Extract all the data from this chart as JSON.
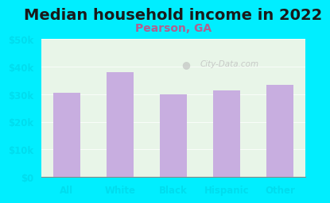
{
  "title": "Median household income in 2022",
  "subtitle": "Pearson, GA",
  "categories": [
    "All",
    "White",
    "Black",
    "Hispanic",
    "Other"
  ],
  "values": [
    30500,
    38000,
    30000,
    31500,
    33500
  ],
  "bar_color": "#c8aee0",
  "title_color": "#1a1a1a",
  "subtitle_color": "#b06090",
  "background_color": "#00eeff",
  "plot_bg_top": "#e8f5e8",
  "plot_bg_bottom": "#f5fff5",
  "tick_label_color": "#00ddee",
  "ylim": [
    0,
    50000
  ],
  "yticks": [
    0,
    10000,
    20000,
    30000,
    40000,
    50000
  ],
  "ytick_labels": [
    "$0",
    "$10k",
    "$20k",
    "$30k",
    "$40k",
    "$50k"
  ],
  "watermark": "City-Data.com",
  "bar_width": 0.5,
  "title_fontsize": 14,
  "subtitle_fontsize": 10
}
